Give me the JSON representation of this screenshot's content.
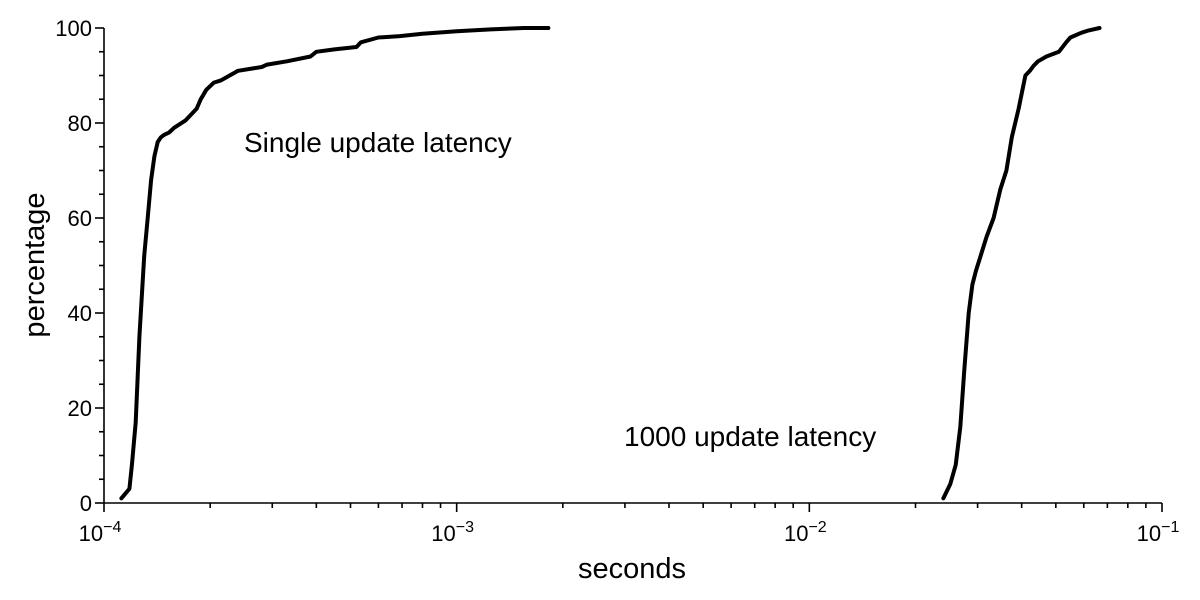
{
  "chart_data": {
    "type": "line",
    "xlabel": "seconds",
    "ylabel": "percentage",
    "x_scale": "log",
    "xlim": [
      0.0001,
      0.1
    ],
    "ylim": [
      0,
      100
    ],
    "grid": false,
    "x_ticks": [
      {
        "value": 0.0001,
        "base": "10",
        "exp": "−4"
      },
      {
        "value": 0.001,
        "base": "10",
        "exp": "−3"
      },
      {
        "value": 0.01,
        "base": "10",
        "exp": "−2"
      },
      {
        "value": 0.1,
        "base": "10",
        "exp": "−1"
      }
    ],
    "y_ticks": [
      0,
      20,
      40,
      60,
      80,
      100
    ],
    "series": [
      {
        "annotation": "Single update latency",
        "x": [
          0.000112,
          0.000118,
          0.00012,
          0.000123,
          0.000126,
          0.00013,
          0.000133,
          0.000136,
          0.000139,
          0.000142,
          0.000145,
          0.000148,
          0.000153,
          0.000158,
          0.00017,
          0.000183,
          0.000188,
          0.000195,
          0.000205,
          0.000215,
          0.00024,
          0.00028,
          0.00029,
          0.00033,
          0.000385,
          0.0004,
          0.00045,
          0.00052,
          0.000535,
          0.0006,
          0.00069,
          0.0008,
          0.001,
          0.00125,
          0.00155,
          0.00182
        ],
        "y": [
          1,
          3,
          8,
          17,
          35,
          52,
          60,
          68,
          73,
          76,
          77,
          77.5,
          78,
          79,
          80.5,
          83,
          85,
          87,
          88.5,
          89,
          91,
          91.8,
          92.3,
          93,
          94,
          95,
          95.5,
          96,
          97,
          98,
          98.3,
          98.8,
          99.3,
          99.7,
          100,
          100
        ],
        "values_note_hidden": ""
      },
      {
        "annotation": "1000 update latency",
        "x": [
          0.024,
          0.0251,
          0.026,
          0.0268,
          0.0275,
          0.0283,
          0.029,
          0.0297,
          0.0306,
          0.0318,
          0.0333,
          0.0348,
          0.0362,
          0.0375,
          0.0392,
          0.041,
          0.0422,
          0.0432,
          0.0445,
          0.047,
          0.051,
          0.0535,
          0.055,
          0.059,
          0.062,
          0.0665
        ],
        "y": [
          1,
          4,
          8,
          16,
          28,
          40,
          46,
          49,
          52,
          56,
          60,
          66,
          70,
          77,
          83,
          90,
          91,
          92,
          93,
          94,
          95,
          97,
          98,
          99,
          99.5,
          100
        ]
      }
    ]
  }
}
